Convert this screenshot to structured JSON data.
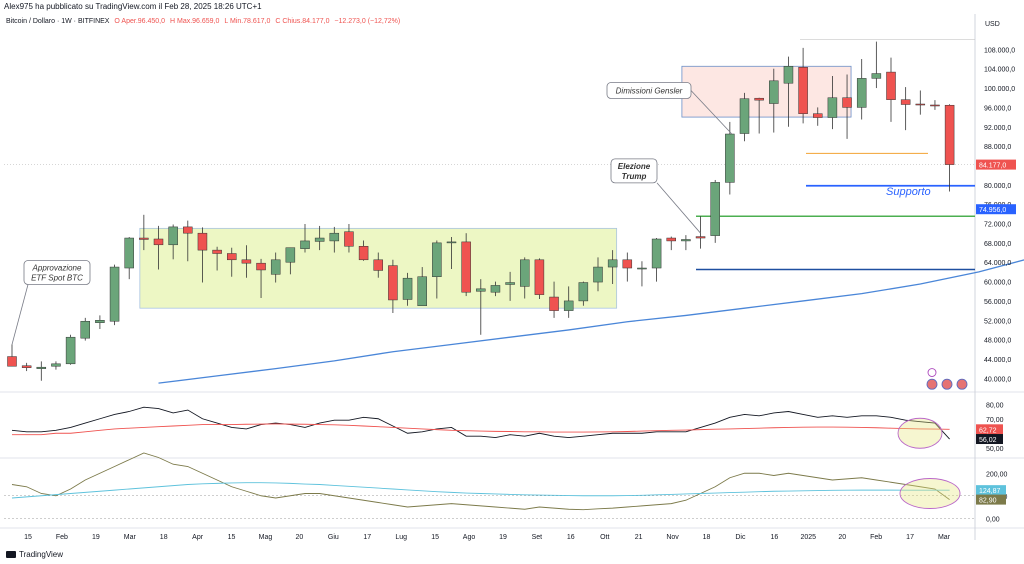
{
  "header": {
    "published_by": "Alex975 ha pubblicato su TradingView.com il Feb 28, 2025 18:26 UTC+1"
  },
  "symbol": {
    "name": "Bitcoin / Dollaro · 1W · BITFINEX",
    "open": "O  Aper.96.450,0",
    "high": "H  Max.96.659,0",
    "low": "L  Min.78.617,0",
    "close": "C  Chius.84.177,0",
    "change": "−12.273,0 (−12,72%)"
  },
  "footer": {
    "logo_text": "TradingView"
  },
  "colors": {
    "up": "#6ba57a",
    "down": "#ef5350",
    "ma": "#4a86d8",
    "range_fill": "#edf7c4",
    "range_border": "#a8c4e0",
    "supply_fill": "#fde7e3",
    "support_blue": "#2962ff",
    "green_line": "#4caf50",
    "navy_line": "#1e4fa0",
    "orange_line": "#f3a332"
  },
  "chart_data": [
    {
      "type": "candlestick",
      "title": "Bitcoin / Dollaro · 1W · BITFINEX",
      "currency_label": "USD",
      "ylim": [
        38000,
        112000
      ],
      "ytick_labels": [
        "108.000,0",
        "104.000,0",
        "100.000,0",
        "96.000,0",
        "92.000,0",
        "88.000,0",
        "84.000,0",
        "80.000,0",
        "76.000,0",
        "72.000,0",
        "68.000,0",
        "64.000,0",
        "60.000,0",
        "56.000,0",
        "52.000,0",
        "48.000,0",
        "44.000,0",
        "40.000,0"
      ],
      "ytick_values": [
        108000,
        104000,
        100000,
        96000,
        92000,
        88000,
        84000,
        80000,
        76000,
        72000,
        68000,
        64000,
        60000,
        56000,
        52000,
        48000,
        44000,
        40000
      ],
      "xtick_labels": [
        "15",
        "Feb",
        "19",
        "Mar",
        "18",
        "Apr",
        "15",
        "Mag",
        "20",
        "Giu",
        "17",
        "Lug",
        "15",
        "Ago",
        "19",
        "Set",
        "16",
        "Ott",
        "21",
        "Nov",
        "18",
        "Dic",
        "16",
        "2025",
        "20",
        "Feb",
        "17",
        "Mar"
      ],
      "candles": [
        {
          "o": 44500,
          "h": 47000,
          "l": 42500,
          "c": 42500
        },
        {
          "o": 42600,
          "h": 43200,
          "l": 41500,
          "c": 42200
        },
        {
          "o": 42000,
          "h": 43500,
          "l": 39500,
          "c": 42300
        },
        {
          "o": 42500,
          "h": 43500,
          "l": 41800,
          "c": 43000
        },
        {
          "o": 43000,
          "h": 49000,
          "l": 42800,
          "c": 48500
        },
        {
          "o": 48300,
          "h": 52500,
          "l": 47800,
          "c": 51800
        },
        {
          "o": 51500,
          "h": 53000,
          "l": 50200,
          "c": 52000
        },
        {
          "o": 51800,
          "h": 63500,
          "l": 51000,
          "c": 63000
        },
        {
          "o": 62800,
          "h": 69200,
          "l": 60500,
          "c": 69000
        },
        {
          "o": 69000,
          "h": 73800,
          "l": 66500,
          "c": 68700
        },
        {
          "o": 68800,
          "h": 71500,
          "l": 62500,
          "c": 67600
        },
        {
          "o": 67600,
          "h": 71800,
          "l": 64600,
          "c": 71300
        },
        {
          "o": 71300,
          "h": 72600,
          "l": 64200,
          "c": 70000
        },
        {
          "o": 70000,
          "h": 71200,
          "l": 59800,
          "c": 66500
        },
        {
          "o": 66500,
          "h": 67200,
          "l": 62300,
          "c": 65800
        },
        {
          "o": 65800,
          "h": 67000,
          "l": 61000,
          "c": 64500
        },
        {
          "o": 64500,
          "h": 67500,
          "l": 60800,
          "c": 63800
        },
        {
          "o": 63800,
          "h": 64700,
          "l": 56600,
          "c": 62400
        },
        {
          "o": 61500,
          "h": 66000,
          "l": 59800,
          "c": 64500
        },
        {
          "o": 64000,
          "h": 67000,
          "l": 61500,
          "c": 67000
        },
        {
          "o": 66800,
          "h": 71900,
          "l": 66000,
          "c": 68400
        },
        {
          "o": 68300,
          "h": 71500,
          "l": 66500,
          "c": 69000
        },
        {
          "o": 68400,
          "h": 71300,
          "l": 66000,
          "c": 70000
        },
        {
          "o": 70300,
          "h": 71900,
          "l": 66000,
          "c": 67300
        },
        {
          "o": 67300,
          "h": 68500,
          "l": 64300,
          "c": 64500
        },
        {
          "o": 64500,
          "h": 66000,
          "l": 60800,
          "c": 62300
        },
        {
          "o": 63300,
          "h": 64500,
          "l": 53500,
          "c": 56200
        },
        {
          "o": 56300,
          "h": 61800,
          "l": 55000,
          "c": 60700
        },
        {
          "o": 55000,
          "h": 63000,
          "l": 55500,
          "c": 61000
        },
        {
          "o": 61000,
          "h": 68500,
          "l": 56500,
          "c": 68000
        },
        {
          "o": 68000,
          "h": 69200,
          "l": 62600,
          "c": 68200
        },
        {
          "o": 68200,
          "h": 70000,
          "l": 57000,
          "c": 57800
        },
        {
          "o": 58000,
          "h": 60500,
          "l": 49000,
          "c": 58500
        },
        {
          "o": 57800,
          "h": 60000,
          "l": 57000,
          "c": 59200
        },
        {
          "o": 59400,
          "h": 62000,
          "l": 56000,
          "c": 59800
        },
        {
          "o": 59000,
          "h": 65000,
          "l": 56500,
          "c": 64500
        },
        {
          "o": 64500,
          "h": 64800,
          "l": 56400,
          "c": 57300
        },
        {
          "o": 56800,
          "h": 60000,
          "l": 52500,
          "c": 54000
        },
        {
          "o": 54000,
          "h": 59000,
          "l": 52500,
          "c": 56000
        },
        {
          "o": 56000,
          "h": 60000,
          "l": 55000,
          "c": 59800
        },
        {
          "o": 59900,
          "h": 65000,
          "l": 58000,
          "c": 63000
        },
        {
          "o": 63000,
          "h": 66500,
          "l": 59500,
          "c": 64500
        },
        {
          "o": 64500,
          "h": 66000,
          "l": 60000,
          "c": 62800
        },
        {
          "o": 62800,
          "h": 64200,
          "l": 59000,
          "c": 62800
        },
        {
          "o": 62800,
          "h": 69000,
          "l": 60000,
          "c": 68800
        },
        {
          "o": 69000,
          "h": 69300,
          "l": 66500,
          "c": 68400
        },
        {
          "o": 68400,
          "h": 69600,
          "l": 66500,
          "c": 68700
        },
        {
          "o": 69300,
          "h": 73500,
          "l": 66800,
          "c": 69000
        },
        {
          "o": 69500,
          "h": 81000,
          "l": 68000,
          "c": 80500
        },
        {
          "o": 80500,
          "h": 93000,
          "l": 78000,
          "c": 90500
        },
        {
          "o": 90600,
          "h": 99000,
          "l": 89000,
          "c": 97800
        },
        {
          "o": 97900,
          "h": 98000,
          "l": 90600,
          "c": 97500
        },
        {
          "o": 96800,
          "h": 104000,
          "l": 90800,
          "c": 101500
        },
        {
          "o": 101000,
          "h": 106500,
          "l": 92000,
          "c": 104500
        },
        {
          "o": 104300,
          "h": 108300,
          "l": 92700,
          "c": 94700
        },
        {
          "o": 94700,
          "h": 96000,
          "l": 92200,
          "c": 93900
        },
        {
          "o": 93900,
          "h": 102500,
          "l": 91500,
          "c": 98000
        },
        {
          "o": 98000,
          "h": 102800,
          "l": 89500,
          "c": 96000
        },
        {
          "o": 96000,
          "h": 106000,
          "l": 93500,
          "c": 102000
        },
        {
          "o": 102000,
          "h": 109600,
          "l": 100000,
          "c": 103000
        },
        {
          "o": 103300,
          "h": 106300,
          "l": 93000,
          "c": 97600
        },
        {
          "o": 97600,
          "h": 100200,
          "l": 91300,
          "c": 96600
        },
        {
          "o": 96700,
          "h": 99500,
          "l": 94500,
          "c": 96500
        },
        {
          "o": 96500,
          "h": 97500,
          "l": 95500,
          "c": 96400
        },
        {
          "o": 96450,
          "h": 96659,
          "l": 78617,
          "c": 84177
        }
      ],
      "moving_average": [
        {
          "i": 10,
          "v": 39000
        },
        {
          "i": 14,
          "v": 40500
        },
        {
          "i": 18,
          "v": 42000
        },
        {
          "i": 22,
          "v": 43600
        },
        {
          "i": 26,
          "v": 45500
        },
        {
          "i": 30,
          "v": 47000
        },
        {
          "i": 34,
          "v": 48500
        },
        {
          "i": 38,
          "v": 50000
        },
        {
          "i": 42,
          "v": 51700
        },
        {
          "i": 46,
          "v": 53000
        },
        {
          "i": 50,
          "v": 54500
        },
        {
          "i": 54,
          "v": 56000
        },
        {
          "i": 58,
          "v": 57500
        },
        {
          "i": 62,
          "v": 59500
        },
        {
          "i": 66,
          "v": 62000
        },
        {
          "i": 70,
          "v": 65200
        },
        {
          "i": 74,
          "v": 68500
        },
        {
          "i": 78,
          "v": 71500
        },
        {
          "i": 80,
          "v": 73200
        },
        {
          "i": 82,
          "v": 74300
        },
        {
          "i": 83,
          "v": 74956
        }
      ],
      "price_tags": [
        {
          "label": "84.177,0",
          "value": 84177,
          "color": "#ef5350"
        },
        {
          "label": "74.956,0",
          "value": 74956,
          "color": "#2962ff"
        }
      ],
      "levels": [
        {
          "name": "support",
          "value": 79800,
          "color": "#2962ff"
        },
        {
          "name": "green",
          "value": 73500,
          "color": "#4caf50"
        },
        {
          "name": "navy",
          "value": 62500,
          "color": "#1e4fa0"
        },
        {
          "name": "orange",
          "value": 86500,
          "color": "#f3a332"
        }
      ],
      "range_box": {
        "from_index": 9,
        "to_index": 41,
        "low": 54500,
        "high": 71000
      },
      "supply_box": {
        "from_index": 46,
        "to_index": 57,
        "low": 94000,
        "high": 104500
      },
      "annotations": [
        {
          "name": "approvazione",
          "lines": [
            "Approvazione",
            "ETF Spot BTC"
          ]
        },
        {
          "name": "elezione",
          "lines": [
            "Elezione",
            "Trump"
          ]
        },
        {
          "name": "dimissioni",
          "lines": [
            "Dimissioni Gensler"
          ]
        },
        {
          "name": "supporto",
          "lines": [
            "Supporto"
          ]
        }
      ]
    },
    {
      "type": "line",
      "title": "",
      "ylim": [
        45,
        85
      ],
      "ytick_labels": [
        "80,00",
        "70,00",
        "50,00"
      ],
      "ytick_values": [
        80,
        70,
        50
      ],
      "series": [
        {
          "color": "#131722",
          "values": [
            62,
            61,
            61,
            62,
            64,
            67,
            70,
            73,
            75,
            78,
            77,
            74,
            76,
            70,
            67,
            64,
            63,
            66,
            67,
            66,
            64,
            67,
            69,
            69,
            71,
            70,
            65,
            60,
            61,
            63,
            64,
            58,
            58,
            57,
            59,
            58,
            60,
            58,
            57,
            58,
            59,
            60,
            60,
            60,
            61,
            61,
            61,
            64,
            67,
            71,
            73,
            72,
            74,
            75,
            73,
            71,
            72,
            71,
            72,
            72,
            71,
            69,
            68,
            67,
            56.02
          ]
        },
        {
          "color": "#ef5350",
          "values": [
            59,
            59,
            59,
            60,
            60,
            61,
            62,
            63,
            63.5,
            64,
            64.5,
            65,
            65.5,
            66,
            66,
            66,
            66.2,
            66.3,
            66.4,
            66.3,
            66.2,
            66,
            65.8,
            65.5,
            65,
            64.5,
            64,
            63.5,
            63,
            62.5,
            62,
            61.8,
            61.5,
            61.3,
            61.2,
            61,
            61,
            60.8,
            60.8,
            60.8,
            60.9,
            61,
            61.2,
            61.5,
            61.8,
            62,
            62.2,
            62.5,
            62.8,
            63,
            63.2,
            63.5,
            63.8,
            64,
            64.2,
            64.3,
            64.3,
            64.2,
            64,
            63.8,
            63.5,
            63.2,
            63,
            62.9,
            62.72
          ]
        }
      ],
      "tags": [
        {
          "label": "62,72",
          "value": 62.72,
          "color": "#ef5350"
        },
        {
          "label": "56,02",
          "value": 56.02,
          "color": "#131722"
        }
      ]
    },
    {
      "type": "line",
      "title": "",
      "ylim": [
        -30,
        250
      ],
      "ytick_labels": [
        "200,00",
        "100,00",
        "0,00"
      ],
      "ytick_values": [
        200,
        100,
        0
      ],
      "series": [
        {
          "color": "#7c7a4a",
          "values": [
            150,
            140,
            110,
            100,
            130,
            170,
            200,
            230,
            260,
            290,
            270,
            240,
            230,
            200,
            170,
            140,
            120,
            100,
            90,
            100,
            110,
            110,
            100,
            90,
            80,
            70,
            60,
            50,
            55,
            60,
            65,
            60,
            55,
            50,
            45,
            40,
            50,
            45,
            40,
            38,
            42,
            45,
            50,
            55,
            60,
            65,
            80,
            110,
            140,
            180,
            200,
            200,
            190,
            200,
            190,
            180,
            170,
            175,
            180,
            170,
            160,
            150,
            140,
            130,
            82.9
          ]
        },
        {
          "color": "#5ec2dc",
          "values": [
            90,
            95,
            100,
            105,
            110,
            115,
            120,
            125,
            130,
            135,
            140,
            145,
            150,
            153,
            155,
            157,
            158,
            158,
            157,
            155,
            152,
            150,
            146,
            142,
            138,
            134,
            130,
            126,
            122,
            118,
            115,
            112,
            110,
            108,
            106,
            104,
            103,
            102,
            101,
            100,
            100,
            100,
            101,
            102,
            104,
            106,
            108,
            110,
            112,
            114,
            116,
            118,
            120,
            121,
            122,
            123,
            124,
            124.5,
            125,
            125,
            125,
            124.87,
            124.87,
            124.87,
            124.87
          ]
        }
      ],
      "tags": [
        {
          "label": "124,87",
          "value": 124.87,
          "color": "#5ec2dc"
        },
        {
          "label": "82,90",
          "value": 82.9,
          "color": "#7c7a4a"
        }
      ]
    }
  ]
}
